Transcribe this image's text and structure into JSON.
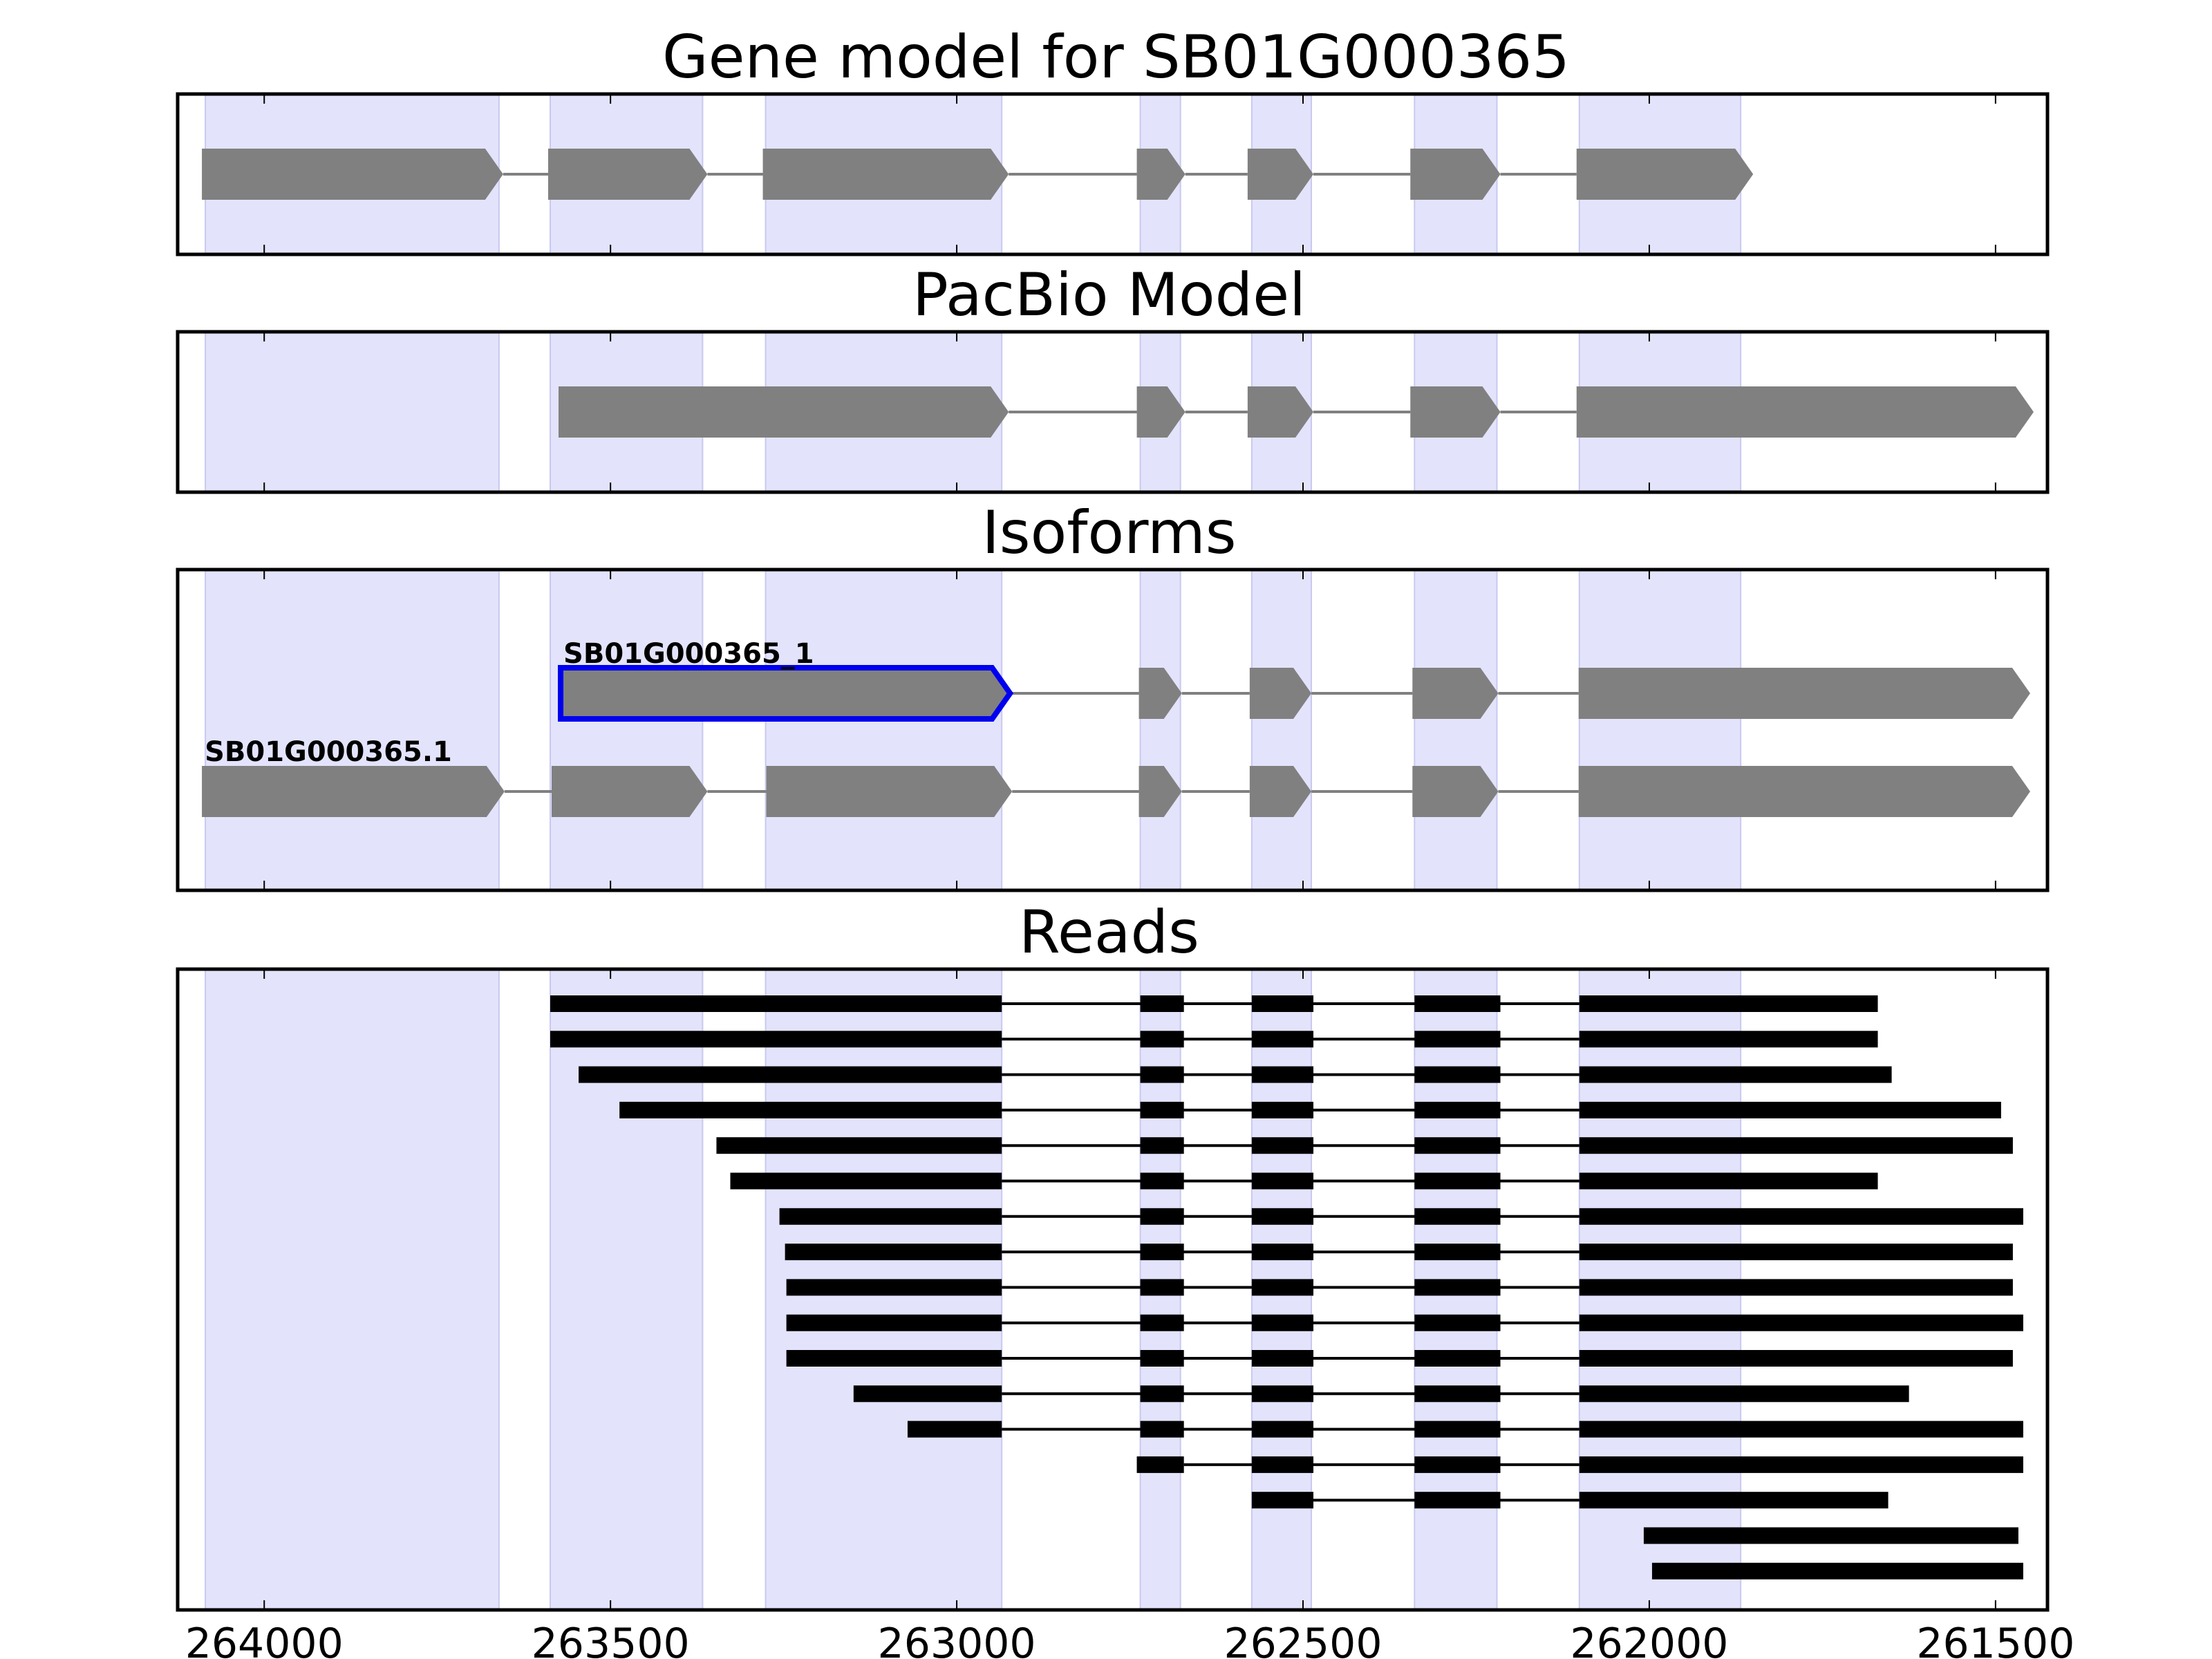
{
  "chart_data": {
    "type": "gene-track",
    "xlim": [
      264125,
      261425
    ],
    "x_ticks": [
      {
        "value": 264000,
        "label": "264000"
      },
      {
        "value": 263500,
        "label": "263500"
      },
      {
        "value": 263000,
        "label": "263000"
      },
      {
        "value": 262500,
        "label": "262500"
      },
      {
        "value": 262000,
        "label": "262000"
      },
      {
        "value": 261500,
        "label": "261500"
      }
    ],
    "exon_regions": [
      [
        264085,
        263661
      ],
      [
        263587,
        263367
      ],
      [
        263276,
        262935
      ],
      [
        262735,
        262677
      ],
      [
        262574,
        262488
      ],
      [
        262339,
        262220
      ],
      [
        262101,
        261868
      ]
    ],
    "colors": {
      "exon_shade": "#e3e3fc",
      "exon_shade_edge": "#c9c9f0",
      "feature": "#808080",
      "read": "#000000",
      "highlight": "#0000ee",
      "intron": "#808080"
    },
    "panels": [
      {
        "title": "Gene model for SB01G000365",
        "kind": "model",
        "rows": 1,
        "transcripts": [
          {
            "row": 0,
            "label": "",
            "highlight": false,
            "exons": [
              [
                264090,
                263655
              ],
              [
                263590,
                263360
              ],
              [
                263280,
                262925
              ],
              [
                262740,
                262670
              ],
              [
                262580,
                262485
              ],
              [
                262345,
                262215
              ],
              [
                262105,
                261850
              ]
            ]
          }
        ]
      },
      {
        "title": "PacBio Model",
        "kind": "model",
        "rows": 1,
        "transcripts": [
          {
            "row": 0,
            "label": "",
            "highlight": false,
            "exons": [
              [
                263575,
                262925
              ],
              [
                262740,
                262670
              ],
              [
                262580,
                262485
              ],
              [
                262345,
                262215
              ],
              [
                262105,
                261445
              ]
            ]
          }
        ]
      },
      {
        "title": "Isoforms",
        "kind": "model",
        "rows": 2,
        "transcripts": [
          {
            "row": 0,
            "label": "SB01G000365_1",
            "highlight": true,
            "exons": [
              [
                263572,
                262923
              ],
              [
                262737,
                262675
              ],
              [
                262577,
                262488
              ],
              [
                262342,
                262218
              ],
              [
                262102,
                261450
              ]
            ]
          },
          {
            "row": 1,
            "label": "SB01G000365.1",
            "highlight": false,
            "exons": [
              [
                264090,
                263653
              ],
              [
                263585,
                263360
              ],
              [
                263275,
                262920
              ],
              [
                262737,
                262675
              ],
              [
                262577,
                262488
              ],
              [
                262342,
                262218
              ],
              [
                262102,
                261450
              ]
            ]
          }
        ]
      },
      {
        "title": "Reads",
        "kind": "reads",
        "rows": 17,
        "reads": [
          {
            "exons": [
              [
                263587,
                262935
              ],
              [
                262735,
                262672
              ],
              [
                262574,
                262485
              ],
              [
                262339,
                262215
              ],
              [
                262101,
                261670
              ]
            ]
          },
          {
            "exons": [
              [
                263587,
                262935
              ],
              [
                262735,
                262672
              ],
              [
                262574,
                262485
              ],
              [
                262339,
                262215
              ],
              [
                262101,
                261670
              ]
            ]
          },
          {
            "exons": [
              [
                263546,
                262935
              ],
              [
                262735,
                262672
              ],
              [
                262574,
                262485
              ],
              [
                262339,
                262215
              ],
              [
                262101,
                261650
              ]
            ]
          },
          {
            "exons": [
              [
                263487,
                262935
              ],
              [
                262735,
                262672
              ],
              [
                262574,
                262485
              ],
              [
                262339,
                262215
              ],
              [
                262101,
                261492
              ]
            ]
          },
          {
            "exons": [
              [
                263347,
                262935
              ],
              [
                262735,
                262672
              ],
              [
                262574,
                262485
              ],
              [
                262339,
                262215
              ],
              [
                262101,
                261475
              ]
            ]
          },
          {
            "exons": [
              [
                263327,
                262935
              ],
              [
                262735,
                262672
              ],
              [
                262574,
                262485
              ],
              [
                262339,
                262215
              ],
              [
                262101,
                261670
              ]
            ]
          },
          {
            "exons": [
              [
                263256,
                262935
              ],
              [
                262735,
                262672
              ],
              [
                262574,
                262485
              ],
              [
                262339,
                262215
              ],
              [
                262101,
                261460
              ]
            ]
          },
          {
            "exons": [
              [
                263248,
                262935
              ],
              [
                262735,
                262672
              ],
              [
                262574,
                262485
              ],
              [
                262339,
                262215
              ],
              [
                262101,
                261475
              ]
            ]
          },
          {
            "exons": [
              [
                263246,
                262935
              ],
              [
                262735,
                262672
              ],
              [
                262574,
                262485
              ],
              [
                262339,
                262215
              ],
              [
                262101,
                261475
              ]
            ]
          },
          {
            "exons": [
              [
                263246,
                262935
              ],
              [
                262735,
                262672
              ],
              [
                262574,
                262485
              ],
              [
                262339,
                262215
              ],
              [
                262101,
                261460
              ]
            ]
          },
          {
            "exons": [
              [
                263246,
                262935
              ],
              [
                262735,
                262672
              ],
              [
                262574,
                262485
              ],
              [
                262339,
                262215
              ],
              [
                262101,
                261475
              ]
            ]
          },
          {
            "exons": [
              [
                263149,
                262935
              ],
              [
                262735,
                262672
              ],
              [
                262574,
                262485
              ],
              [
                262339,
                262215
              ],
              [
                262101,
                261625
              ]
            ]
          },
          {
            "exons": [
              [
                263071,
                262935
              ],
              [
                262735,
                262672
              ],
              [
                262574,
                262485
              ],
              [
                262339,
                262215
              ],
              [
                262101,
                261460
              ]
            ]
          },
          {
            "exons": [
              [
                262740,
                262672
              ],
              [
                262574,
                262485
              ],
              [
                262339,
                262215
              ],
              [
                262101,
                261460
              ]
            ]
          },
          {
            "exons": [
              [
                262574,
                262485
              ],
              [
                262339,
                262215
              ],
              [
                262101,
                261655
              ]
            ]
          },
          {
            "exons": [
              [
                262008,
                261467
              ]
            ]
          },
          {
            "exons": [
              [
                261996,
                261460
              ]
            ]
          }
        ]
      }
    ]
  }
}
